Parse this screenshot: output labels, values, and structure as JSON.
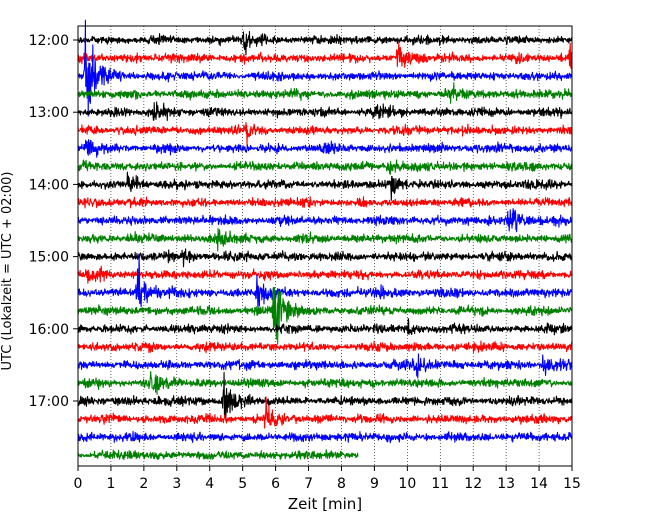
{
  "chart_data": {
    "type": "line",
    "title": "",
    "xlabel": "Zeit  [min]",
    "ylabel": "UTC (Lokalzeit = UTC + 02:00)",
    "xlim": [
      0,
      15
    ],
    "x_ticks": [
      "0",
      "1",
      "2",
      "3",
      "4",
      "5",
      "6",
      "7",
      "8",
      "9",
      "10",
      "11",
      "12",
      "13",
      "14",
      "15"
    ],
    "y_tick_labels": [
      "12:00",
      "13:00",
      "14:00",
      "15:00",
      "16:00",
      "17:00"
    ],
    "grid": "vertical dotted",
    "trace_interval_min": 15,
    "start_utc": "12:00",
    "colors": [
      "#000000",
      "#ff0000",
      "#0000ff",
      "#008000"
    ],
    "traces": [
      {
        "row": 0,
        "utc": "12:00",
        "color": "#000000",
        "end_min": 15,
        "events": [
          {
            "t": 5.0,
            "amp": 0.5
          }
        ]
      },
      {
        "row": 1,
        "utc": "12:15",
        "color": "#ff0000",
        "end_min": 15,
        "events": [
          {
            "t": 9.7,
            "amp": 0.6
          },
          {
            "t": 14.9,
            "amp": 0.8
          }
        ]
      },
      {
        "row": 2,
        "utc": "12:30",
        "color": "#0000ff",
        "end_min": 15,
        "events": [
          {
            "t": 0.2,
            "amp": 2.2
          }
        ]
      },
      {
        "row": 3,
        "utc": "12:45",
        "color": "#008000",
        "end_min": 15,
        "events": [
          {
            "t": 11.2,
            "amp": 0.4
          }
        ]
      },
      {
        "row": 4,
        "utc": "13:00",
        "color": "#000000",
        "end_min": 15,
        "events": [
          {
            "t": 2.3,
            "amp": 0.5
          },
          {
            "t": 9.0,
            "amp": 0.4
          }
        ]
      },
      {
        "row": 5,
        "utc": "13:15",
        "color": "#ff0000",
        "end_min": 15,
        "events": [
          {
            "t": 5.1,
            "amp": 0.4
          }
        ]
      },
      {
        "row": 6,
        "utc": "13:30",
        "color": "#0000ff",
        "end_min": 15,
        "events": [
          {
            "t": 0.2,
            "amp": 0.5
          },
          {
            "t": 7.6,
            "amp": 0.3
          }
        ]
      },
      {
        "row": 7,
        "utc": "13:45",
        "color": "#008000",
        "end_min": 15,
        "events": [
          {
            "t": 9.4,
            "amp": 0.4
          }
        ]
      },
      {
        "row": 8,
        "utc": "14:00",
        "color": "#000000",
        "end_min": 15,
        "events": [
          {
            "t": 1.5,
            "amp": 0.5
          },
          {
            "t": 9.5,
            "amp": 0.4
          }
        ]
      },
      {
        "row": 9,
        "utc": "14:15",
        "color": "#ff0000",
        "end_min": 15,
        "events": []
      },
      {
        "row": 10,
        "utc": "14:30",
        "color": "#0000ff",
        "end_min": 15,
        "events": [
          {
            "t": 13.1,
            "amp": 0.7
          }
        ]
      },
      {
        "row": 11,
        "utc": "14:45",
        "color": "#008000",
        "end_min": 15,
        "events": [
          {
            "t": 4.2,
            "amp": 0.5
          }
        ]
      },
      {
        "row": 12,
        "utc": "15:00",
        "color": "#000000",
        "end_min": 15,
        "events": [
          {
            "t": 3.2,
            "amp": 0.3
          }
        ]
      },
      {
        "row": 13,
        "utc": "15:15",
        "color": "#ff0000",
        "end_min": 15,
        "events": [
          {
            "t": 0.3,
            "amp": 0.3
          }
        ]
      },
      {
        "row": 14,
        "utc": "15:30",
        "color": "#0000ff",
        "end_min": 15,
        "events": [
          {
            "t": 1.8,
            "amp": 1.4
          },
          {
            "t": 5.4,
            "amp": 0.8
          },
          {
            "t": 9.0,
            "amp": 0.3
          }
        ]
      },
      {
        "row": 15,
        "utc": "15:45",
        "color": "#008000",
        "end_min": 15,
        "events": [
          {
            "t": 5.9,
            "amp": 2.0
          }
        ]
      },
      {
        "row": 16,
        "utc": "16:00",
        "color": "#000000",
        "end_min": 15,
        "events": [
          {
            "t": 10.0,
            "amp": 0.3
          }
        ]
      },
      {
        "row": 17,
        "utc": "16:15",
        "color": "#ff0000",
        "end_min": 15,
        "events": []
      },
      {
        "row": 18,
        "utc": "16:30",
        "color": "#0000ff",
        "end_min": 15,
        "events": [
          {
            "t": 10.2,
            "amp": 0.6
          },
          {
            "t": 14.1,
            "amp": 0.5
          }
        ]
      },
      {
        "row": 19,
        "utc": "16:45",
        "color": "#008000",
        "end_min": 15,
        "events": [
          {
            "t": 2.2,
            "amp": 0.4
          }
        ]
      },
      {
        "row": 20,
        "utc": "17:00",
        "color": "#000000",
        "end_min": 15,
        "events": [
          {
            "t": 4.4,
            "amp": 1.0
          }
        ]
      },
      {
        "row": 21,
        "utc": "17:15",
        "color": "#ff0000",
        "end_min": 15,
        "events": [
          {
            "t": 5.7,
            "amp": 0.9
          }
        ]
      },
      {
        "row": 22,
        "utc": "17:30",
        "color": "#0000ff",
        "end_min": 15,
        "events": []
      },
      {
        "row": 23,
        "utc": "17:45",
        "color": "#008000",
        "end_min": 8.5,
        "events": []
      }
    ]
  }
}
